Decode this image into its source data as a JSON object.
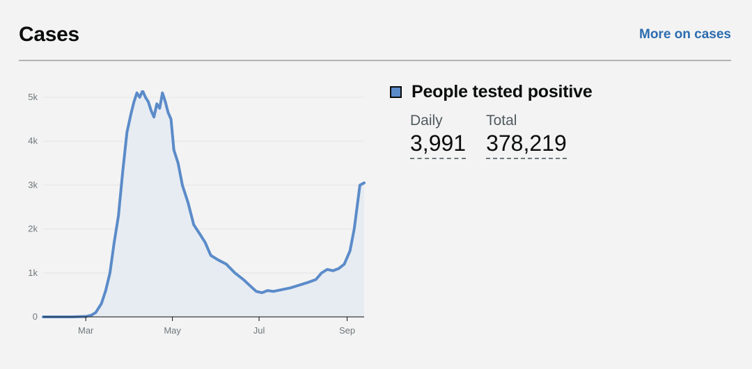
{
  "header": {
    "title": "Cases",
    "more_link": "More on cases"
  },
  "legend": {
    "label": "People tested positive",
    "swatch_color": "#5b8bc9",
    "daily_label": "Daily",
    "daily_value": "3,991",
    "total_label": "Total",
    "total_value": "378,219"
  },
  "chart_data": {
    "type": "area",
    "title": "",
    "xlabel": "",
    "ylabel": "",
    "ylim": [
      0,
      5000
    ],
    "y_ticks": [
      "0",
      "1k",
      "2k",
      "3k",
      "4k",
      "5k"
    ],
    "x_ticks": [
      {
        "label": "Mar",
        "date": "2020-03-01"
      },
      {
        "label": "May",
        "date": "2020-05-01"
      },
      {
        "label": "Jul",
        "date": "2020-07-01"
      },
      {
        "label": "Sep",
        "date": "2020-09-01"
      }
    ],
    "x_range": [
      "2020-01-31",
      "2020-09-13"
    ],
    "grid": true,
    "line_color": "#5b8bc9",
    "fill_color": "#e6ecf2",
    "series": [
      {
        "points": [
          [
            "2020-01-31",
            0
          ],
          [
            "2020-02-20",
            0
          ],
          [
            "2020-03-01",
            10
          ],
          [
            "2020-03-05",
            40
          ],
          [
            "2020-03-08",
            100
          ],
          [
            "2020-03-12",
            300
          ],
          [
            "2020-03-15",
            600
          ],
          [
            "2020-03-18",
            1000
          ],
          [
            "2020-03-21",
            1700
          ],
          [
            "2020-03-24",
            2300
          ],
          [
            "2020-03-27",
            3300
          ],
          [
            "2020-03-30",
            4200
          ],
          [
            "2020-04-02",
            4650
          ],
          [
            "2020-04-04",
            4900
          ],
          [
            "2020-04-06",
            5100
          ],
          [
            "2020-04-08",
            5000
          ],
          [
            "2020-04-10",
            5150
          ],
          [
            "2020-04-12",
            5000
          ],
          [
            "2020-04-14",
            4900
          ],
          [
            "2020-04-16",
            4700
          ],
          [
            "2020-04-18",
            4550
          ],
          [
            "2020-04-20",
            4850
          ],
          [
            "2020-04-22",
            4750
          ],
          [
            "2020-04-24",
            5100
          ],
          [
            "2020-04-26",
            4900
          ],
          [
            "2020-04-28",
            4650
          ],
          [
            "2020-04-30",
            4500
          ],
          [
            "2020-05-02",
            3800
          ],
          [
            "2020-05-05",
            3500
          ],
          [
            "2020-05-08",
            3000
          ],
          [
            "2020-05-12",
            2600
          ],
          [
            "2020-05-16",
            2100
          ],
          [
            "2020-05-20",
            1900
          ],
          [
            "2020-05-24",
            1700
          ],
          [
            "2020-05-28",
            1400
          ],
          [
            "2020-06-02",
            1300
          ],
          [
            "2020-06-08",
            1200
          ],
          [
            "2020-06-14",
            1000
          ],
          [
            "2020-06-20",
            850
          ],
          [
            "2020-06-25",
            700
          ],
          [
            "2020-06-29",
            580
          ],
          [
            "2020-07-03",
            550
          ],
          [
            "2020-07-07",
            600
          ],
          [
            "2020-07-11",
            580
          ],
          [
            "2020-07-17",
            620
          ],
          [
            "2020-07-23",
            660
          ],
          [
            "2020-07-29",
            720
          ],
          [
            "2020-08-04",
            780
          ],
          [
            "2020-08-10",
            850
          ],
          [
            "2020-08-14",
            1000
          ],
          [
            "2020-08-18",
            1080
          ],
          [
            "2020-08-22",
            1050
          ],
          [
            "2020-08-26",
            1100
          ],
          [
            "2020-08-30",
            1200
          ],
          [
            "2020-09-03",
            1500
          ],
          [
            "2020-09-06",
            2000
          ],
          [
            "2020-09-08",
            2500
          ],
          [
            "2020-09-10",
            3000
          ],
          [
            "2020-09-13",
            3050
          ]
        ]
      }
    ]
  }
}
